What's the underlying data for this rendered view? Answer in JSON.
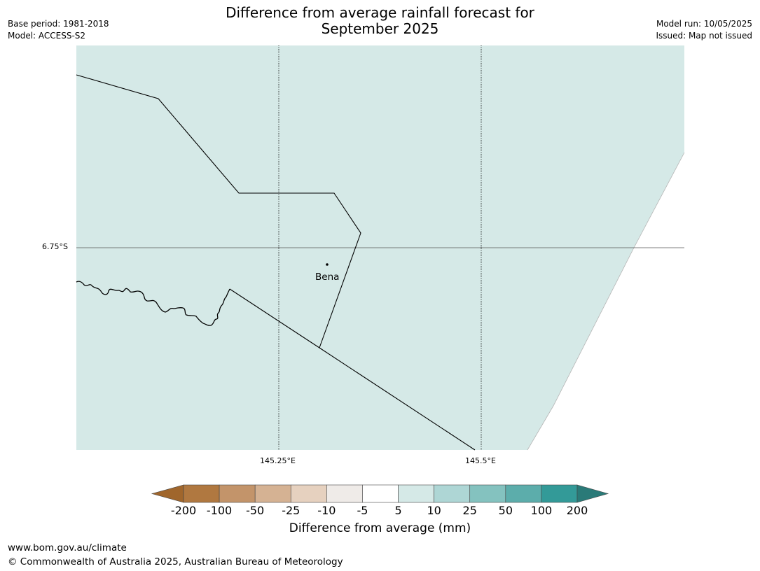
{
  "title": {
    "line1": "Difference from average rainfall forecast for",
    "line2": "September 2025"
  },
  "meta_left": {
    "base_period": "Base period: 1981-2018",
    "model": "Model: ACCESS-S2"
  },
  "meta_right": {
    "model_run": "Model run: 10/05/2025",
    "issued": "Issued: Map not issued"
  },
  "map": {
    "fill_color": "#d5e9e7",
    "lat_tick": "6.75°S",
    "lon_ticks": [
      "145.25°E",
      "145.5°E"
    ],
    "place": {
      "name": "Bena"
    }
  },
  "colorbar": {
    "labels": [
      "-200",
      "-100",
      "-50",
      "-25",
      "-10",
      "-5",
      "5",
      "10",
      "25",
      "50",
      "100",
      "200"
    ],
    "colors": [
      "#a0662c",
      "#b07840",
      "#c3946a",
      "#d5b293",
      "#e6d1bf",
      "#efebe8",
      "#ffffff",
      "#d5e9e7",
      "#aed6d5",
      "#84c2bf",
      "#5cadab",
      "#339a98",
      "#2a7a78"
    ],
    "title": "Difference from average (mm)"
  },
  "footer": {
    "url": "www.bom.gov.au/climate",
    "copyright": "© Commonwealth of Australia 2025, Australian Bureau of Meteorology"
  }
}
